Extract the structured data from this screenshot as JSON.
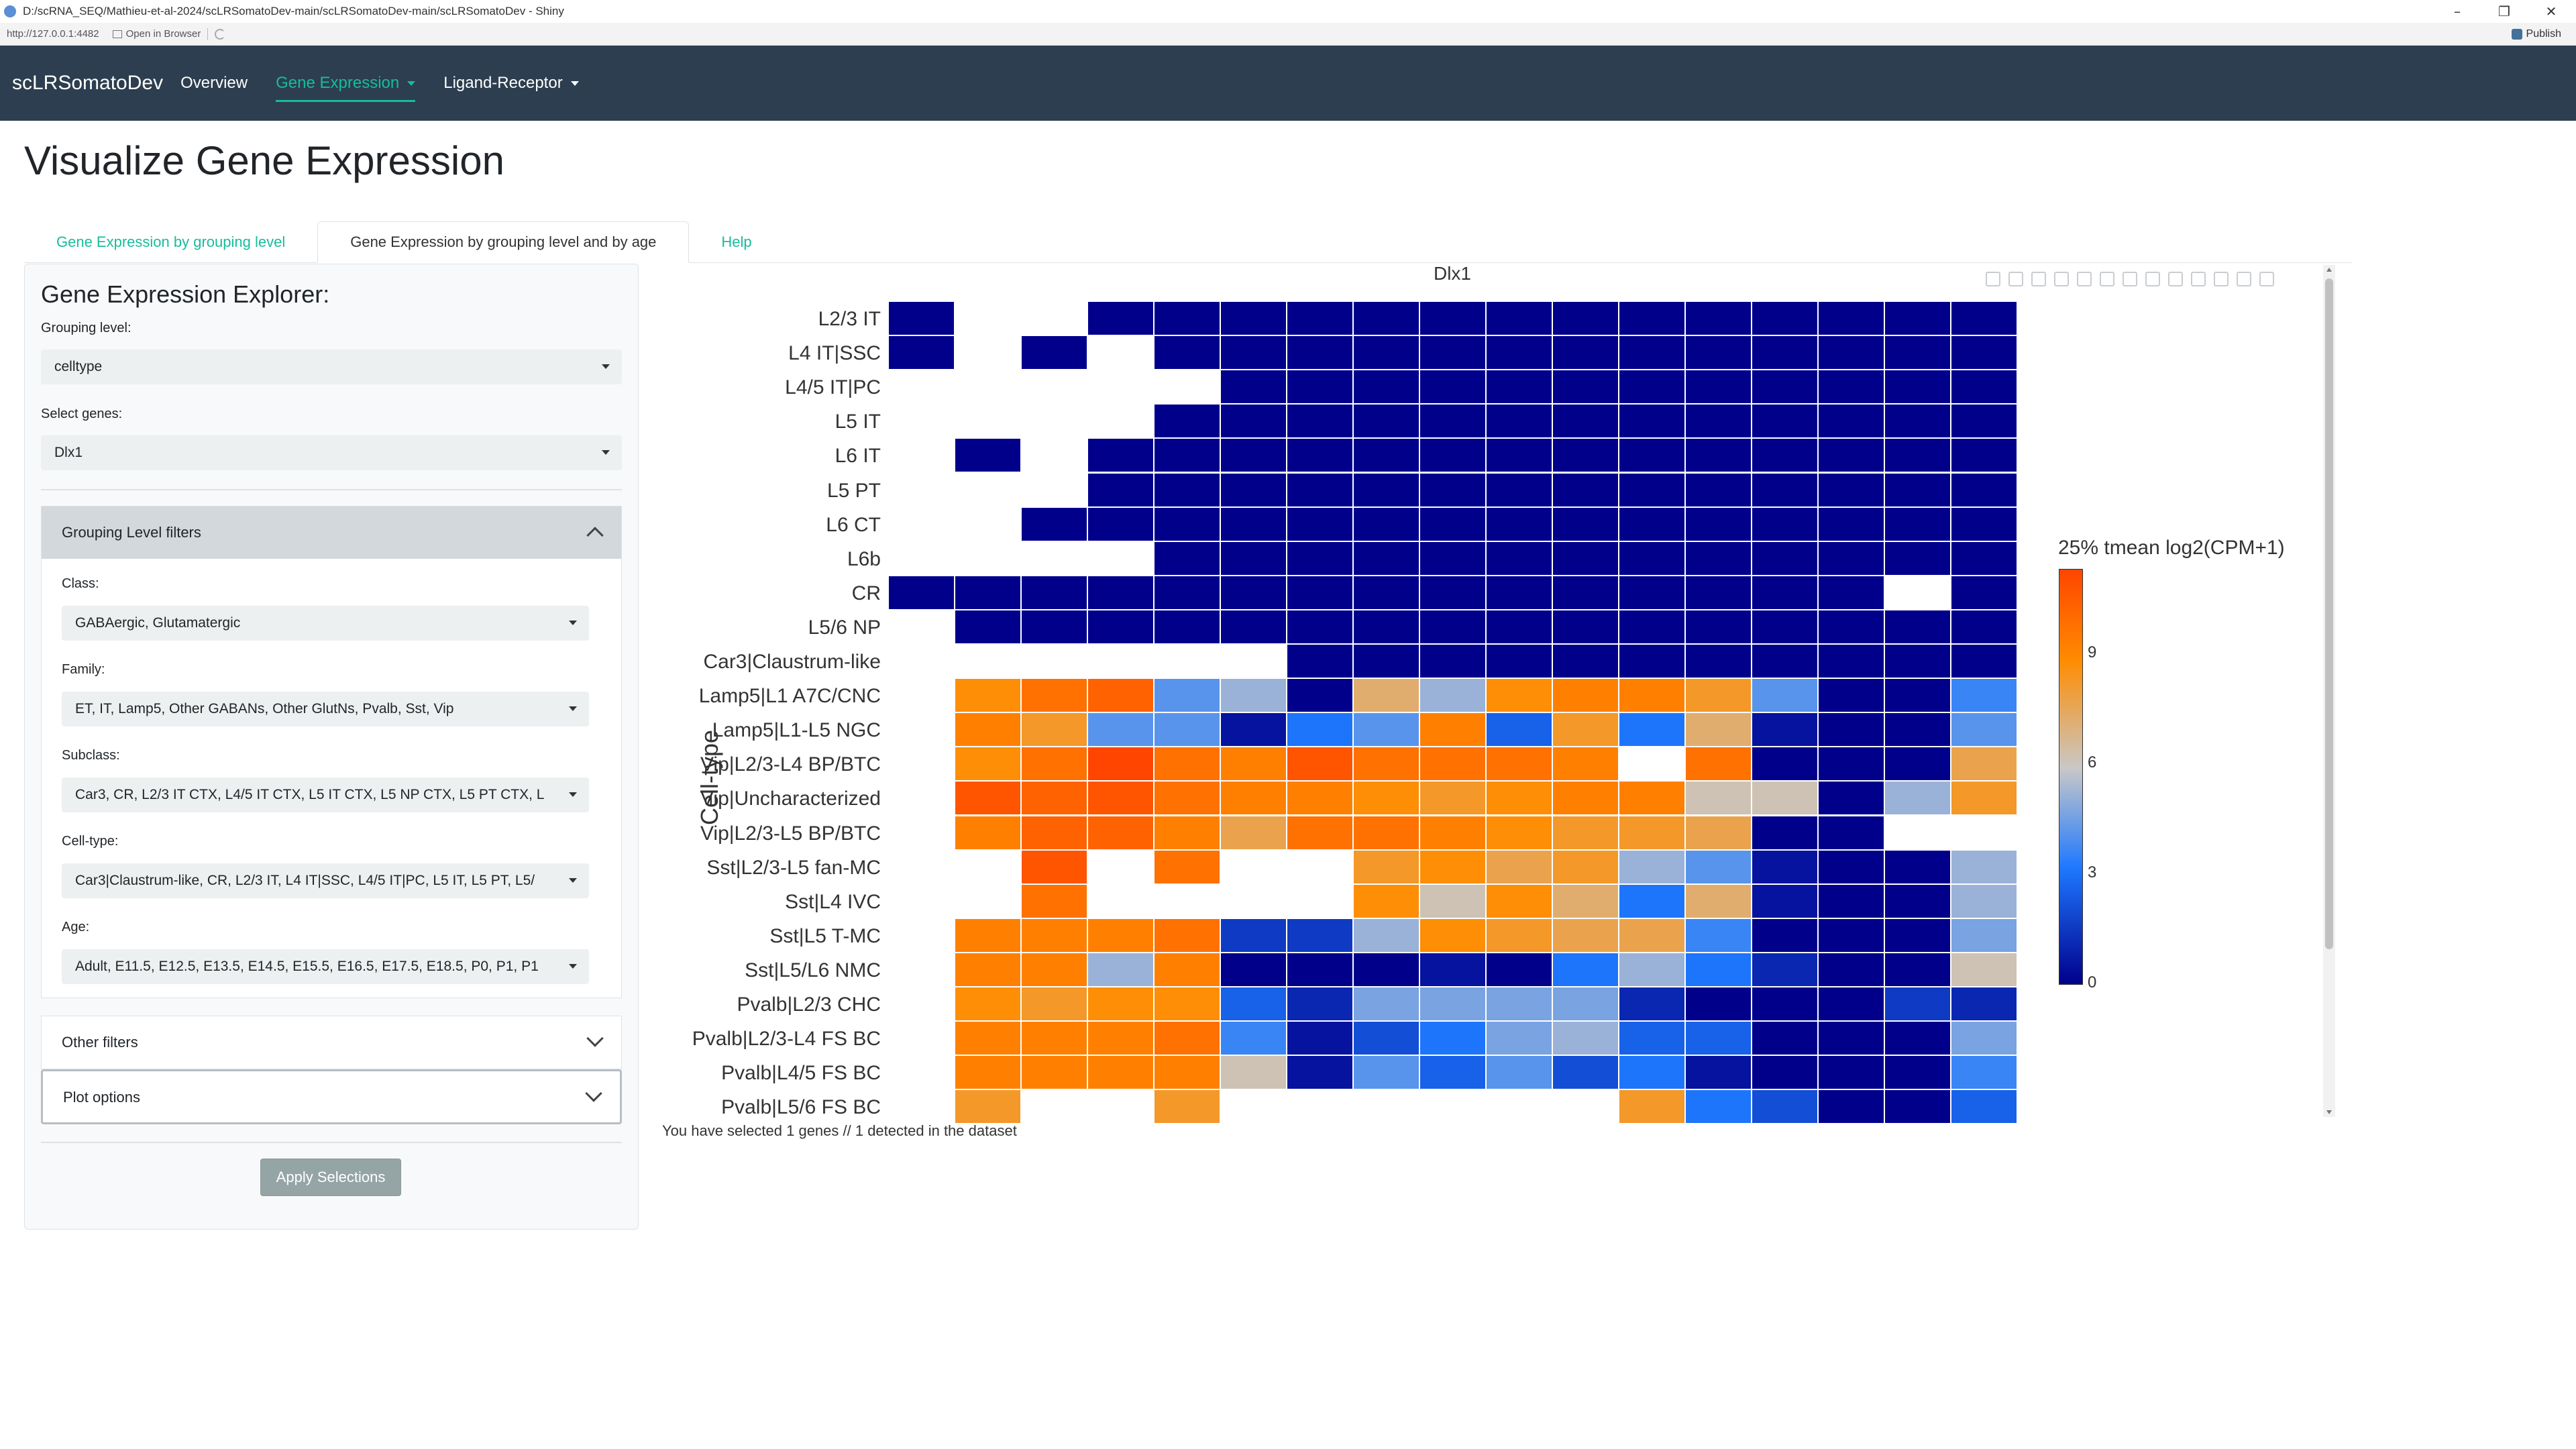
{
  "window": {
    "title": "D:/scRNA_SEQ/Mathieu-et-al-2024/scLRSomatoDev-main/scLRSomatoDev-main/scLRSomatoDev - Shiny",
    "url": "http://127.0.0.1:4482",
    "open_browser": "Open in Browser",
    "publish": "Publish",
    "minimize": "–",
    "restore": "❐",
    "close": "✕"
  },
  "navbar": {
    "brand": "scLRSomatoDev",
    "items": [
      {
        "label": "Overview",
        "active": false,
        "dropdown": false
      },
      {
        "label": "Gene Expression",
        "active": true,
        "dropdown": true
      },
      {
        "label": "Ligand-Receptor",
        "active": false,
        "dropdown": true
      }
    ]
  },
  "page": {
    "title": "Visualize Gene Expression"
  },
  "tabs": [
    {
      "label": "Gene Expression by grouping level",
      "active": false
    },
    {
      "label": "Gene Expression by grouping level and by age",
      "active": true
    },
    {
      "label": "Help",
      "active": false
    }
  ],
  "sidebar": {
    "title": "Gene Expression Explorer:",
    "grouping_label": "Grouping level:",
    "grouping_value": "celltype",
    "genes_label": "Select genes:",
    "genes_value": "Dlx1",
    "filters_header": "Grouping Level filters",
    "class_label": "Class:",
    "class_value": "GABAergic, Glutamatergic",
    "family_label": "Family:",
    "family_value": "ET, IT, Lamp5, Other GABANs, Other GlutNs, Pvalb, Sst, Vip",
    "subclass_label": "Subclass:",
    "subclass_value": "Car3, CR, L2/3 IT CTX, L4/5 IT CTX, L5 IT CTX, L5 NP CTX, L5 PT CTX, L",
    "celltype_label": "Cell-type:",
    "celltype_value": "Car3|Claustrum-like, CR, L2/3 IT, L4 IT|SSC, L4/5 IT|PC, L5 IT, L5 PT, L5/",
    "age_label": "Age:",
    "age_value": "Adult, E11.5, E12.5, E13.5, E14.5, E15.5, E16.5, E17.5, E18.5, P0, P1, P1",
    "other_filters": "Other filters",
    "plot_options": "Plot options",
    "apply_button": "Apply Selections"
  },
  "plot": {
    "gene": "Dlx1",
    "colorbar_title": "25% tmean log2(CPM+1)",
    "colorbar_ticks": [
      "0",
      "3",
      "6",
      "9"
    ],
    "selection_text": "You have selected 1 genes // 1 detected in the dataset"
  },
  "chart_data": {
    "type": "heatmap",
    "title": "Dlx1",
    "ylabel": "Cell-type",
    "xlabel": "",
    "zlabel": "25% tmean log2(CPM+1)",
    "zlim": [
      0,
      11
    ],
    "colors": {
      "low": "#00008b",
      "mid_low": "#1e78ff",
      "mid": "#c8c8c8",
      "mid_high": "#ff8c00",
      "high": "#ff4500"
    },
    "rows": [
      "L2/3 IT",
      "L4 IT|SSC",
      "L4/5 IT|PC",
      "L5 IT",
      "L6 IT",
      "L5 PT",
      "L6 CT",
      "L6b",
      "CR",
      "L5/6 NP",
      "Car3|Claustrum-like",
      "Lamp5|L1 A7C/CNC",
      "Lamp5|L1-L5 NGC",
      "Vip|L2/3-L4 BP/BTC",
      "Vip|Uncharacterized",
      "Vip|L2/3-L5 BP/BTC",
      "Sst|L2/3-L5 fan-MC",
      "Sst|L4 IVC",
      "Sst|L5 T-MC",
      "Sst|L5/L6 NMC",
      "Pvalb|L2/3 CHC",
      "Pvalb|L2/3-L4 FS BC",
      "Pvalb|L4/5 FS BC",
      "Pvalb|L5/6 FS BC"
    ],
    "values": [
      [
        0,
        null,
        null,
        0,
        0,
        0,
        0,
        0,
        0,
        0,
        0,
        0,
        0,
        0,
        0,
        0,
        0
      ],
      [
        0,
        null,
        0,
        null,
        0,
        0,
        0,
        0,
        0,
        0,
        0,
        0,
        0,
        0,
        0,
        0,
        0
      ],
      [
        null,
        null,
        null,
        null,
        null,
        0,
        0,
        0,
        0,
        0,
        0,
        0,
        0,
        0,
        0,
        0,
        0
      ],
      [
        null,
        null,
        null,
        null,
        0,
        0,
        0,
        0,
        0,
        0,
        0,
        0,
        0,
        0,
        0,
        0,
        0
      ],
      [
        null,
        0,
        null,
        0,
        0,
        0,
        0,
        0,
        0,
        0,
        0,
        0,
        0,
        0,
        0,
        0,
        0
      ],
      [
        null,
        null,
        null,
        0,
        0,
        0,
        0,
        0,
        0,
        0,
        0,
        0,
        0,
        0,
        0,
        0,
        0
      ],
      [
        null,
        null,
        0,
        0,
        0,
        0,
        0,
        0,
        0,
        0,
        0,
        0,
        0,
        0,
        0,
        0,
        0
      ],
      [
        null,
        null,
        null,
        null,
        0,
        0,
        0,
        0,
        0,
        0,
        0,
        0,
        0,
        0,
        0,
        0,
        0
      ],
      [
        0,
        0,
        0,
        0,
        0,
        0,
        0,
        0,
        0,
        0,
        0,
        0,
        0,
        0,
        0,
        null,
        0
      ],
      [
        null,
        0,
        0,
        0,
        0,
        0,
        0,
        0,
        0,
        0,
        0,
        0,
        0,
        0,
        0,
        0,
        0
      ],
      [
        null,
        null,
        null,
        null,
        null,
        null,
        0,
        0,
        0,
        0,
        0,
        0,
        0,
        0,
        0,
        0,
        0
      ],
      [
        null,
        8.5,
        9.5,
        10,
        4,
        5,
        0,
        7,
        5,
        8.5,
        9,
        9,
        8,
        4,
        0,
        0,
        3.5
      ],
      [
        null,
        9,
        8,
        4,
        4,
        0.5,
        3,
        4,
        9,
        2.5,
        8,
        3,
        7,
        0.5,
        0,
        0,
        4
      ],
      [
        null,
        8.5,
        9.5,
        11,
        9.5,
        9,
        10.5,
        9.5,
        9.5,
        9.5,
        9,
        null,
        9.5,
        0,
        0,
        0,
        7.5
      ],
      [
        null,
        10.5,
        10,
        10.5,
        9.5,
        9,
        9,
        8.5,
        8,
        8.5,
        9,
        9,
        6,
        6,
        0,
        5,
        8
      ],
      [
        null,
        9,
        10,
        10,
        9,
        7.5,
        9.5,
        9.5,
        9,
        8.5,
        8,
        8,
        7.5,
        0,
        0,
        null,
        null
      ],
      [
        null,
        null,
        10.5,
        null,
        9.5,
        null,
        null,
        8,
        8.5,
        7.5,
        8,
        5,
        4,
        0.5,
        0,
        0,
        5
      ],
      [
        null,
        null,
        9.5,
        null,
        null,
        null,
        null,
        8.5,
        6,
        8.5,
        7,
        3,
        7,
        0.5,
        0,
        0,
        5
      ],
      [
        null,
        9,
        9,
        9,
        9.5,
        1.5,
        1.5,
        5,
        8.5,
        8,
        7.5,
        7.5,
        3.5,
        0,
        0,
        0,
        4.5
      ],
      [
        null,
        9,
        9,
        5,
        9,
        0,
        0,
        0,
        0.5,
        0,
        3,
        5,
        3,
        1,
        0,
        0,
        6
      ],
      [
        null,
        8.5,
        8,
        8.5,
        8.5,
        2.5,
        1,
        4.5,
        4.5,
        4.5,
        4.5,
        1,
        0,
        0,
        0,
        1.5,
        1
      ],
      [
        null,
        9,
        9,
        9,
        9.5,
        3.5,
        0.5,
        2,
        3,
        4.5,
        5,
        2.5,
        2.5,
        0,
        0,
        0,
        4.5
      ],
      [
        null,
        9,
        9,
        9,
        9,
        6,
        0.5,
        4,
        2.5,
        4,
        2,
        3,
        0.5,
        0,
        0,
        0,
        3.5
      ],
      [
        null,
        8,
        null,
        null,
        8,
        null,
        null,
        null,
        null,
        null,
        null,
        8,
        3,
        2,
        0,
        0,
        2.5
      ]
    ]
  }
}
